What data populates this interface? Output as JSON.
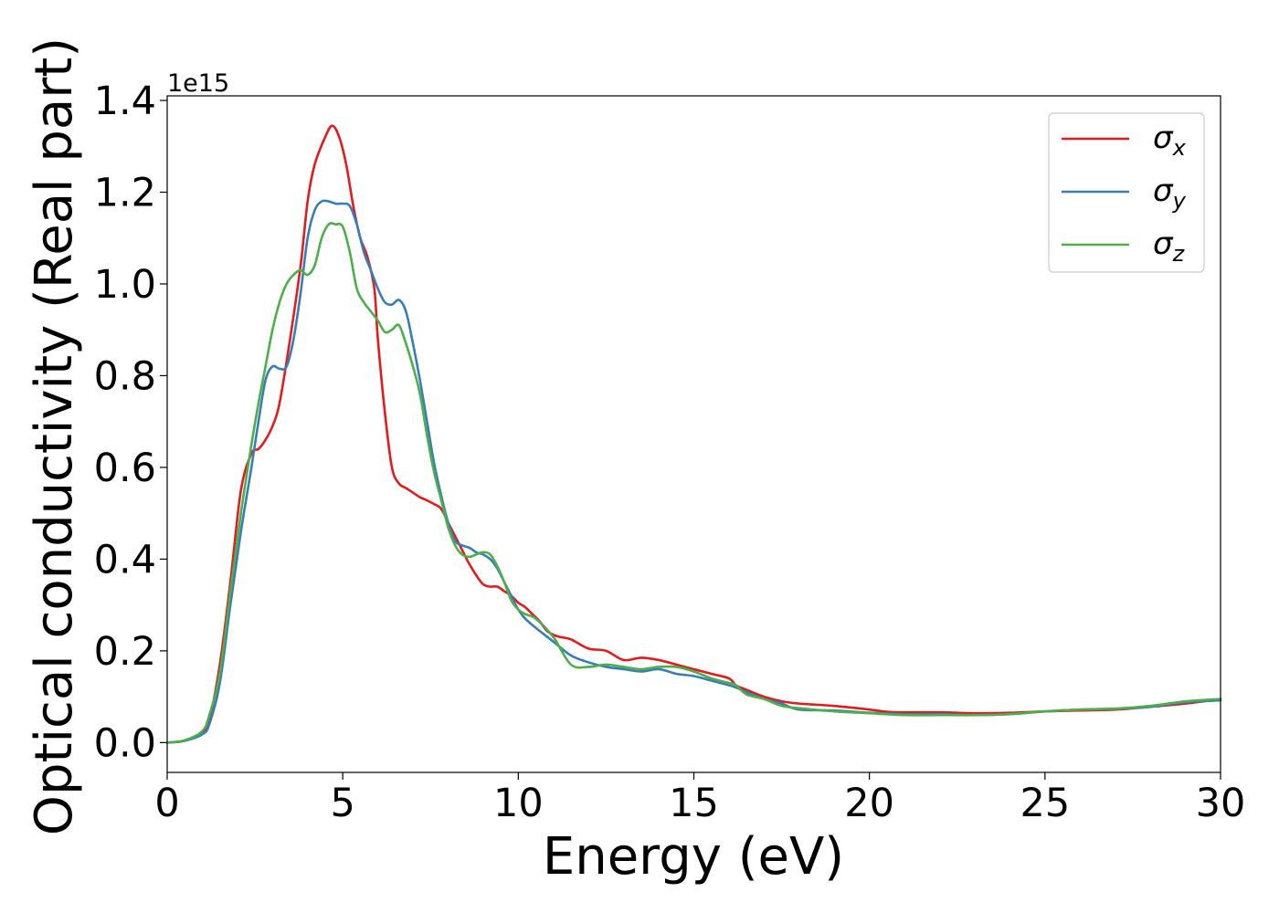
{
  "chart_data": {
    "type": "line",
    "title": "",
    "xlabel": "Energy (eV)",
    "ylabel": "Optical conductivity (Real part)",
    "y_offset_label": "1e15",
    "y_scale": 1000000000000000.0,
    "xlim": [
      0,
      30
    ],
    "ylim": [
      -0.065,
      1.41
    ],
    "x_ticks": [
      0,
      5,
      10,
      15,
      20,
      25,
      30
    ],
    "x_tick_labels": [
      "0",
      "5",
      "10",
      "15",
      "20",
      "25",
      "30"
    ],
    "y_ticks": [
      0.0,
      0.2,
      0.4,
      0.6,
      0.8,
      1.0,
      1.2,
      1.4
    ],
    "y_tick_labels": [
      "0.0",
      "0.2",
      "0.4",
      "0.6",
      "0.8",
      "1.0",
      "1.2",
      "1.4"
    ],
    "grid": false,
    "legend_position": "top-right",
    "series": [
      {
        "name": "σx",
        "legend_base": "σ",
        "legend_sub": "x",
        "color": "#e41a1c",
        "x": [
          0,
          0.5,
          1.0,
          1.2,
          1.5,
          1.8,
          2.1,
          2.4,
          2.6,
          2.8,
          3.0,
          3.2,
          3.5,
          3.8,
          4.0,
          4.2,
          4.5,
          4.7,
          4.9,
          5.1,
          5.3,
          5.5,
          5.7,
          5.9,
          6.0,
          6.2,
          6.4,
          6.6,
          6.8,
          7.0,
          7.2,
          7.4,
          7.6,
          7.8,
          8.0,
          8.2,
          8.4,
          8.6,
          8.8,
          9.0,
          9.2,
          9.4,
          9.6,
          9.8,
          10.0,
          10.2,
          10.4,
          10.6,
          10.8,
          11.0,
          11.2,
          11.5,
          12.0,
          12.5,
          13.0,
          13.5,
          14.0,
          14.5,
          15.0,
          15.5,
          16.0,
          16.2,
          16.5,
          17.0,
          17.5,
          18.0,
          19.0,
          20.0,
          20.5,
          21.0,
          22.0,
          23.0,
          24.0,
          25.0,
          26.0,
          27.0,
          28.0,
          29.0,
          30.0
        ],
        "values": [
          0.0,
          0.004,
          0.02,
          0.05,
          0.17,
          0.35,
          0.55,
          0.63,
          0.64,
          0.66,
          0.69,
          0.74,
          0.88,
          1.04,
          1.18,
          1.26,
          1.32,
          1.345,
          1.32,
          1.26,
          1.17,
          1.1,
          1.06,
          0.99,
          0.88,
          0.72,
          0.6,
          0.565,
          0.555,
          0.545,
          0.535,
          0.528,
          0.52,
          0.51,
          0.48,
          0.45,
          0.42,
          0.39,
          0.365,
          0.345,
          0.34,
          0.34,
          0.33,
          0.32,
          0.305,
          0.295,
          0.28,
          0.265,
          0.245,
          0.235,
          0.23,
          0.225,
          0.205,
          0.2,
          0.18,
          0.185,
          0.18,
          0.17,
          0.16,
          0.15,
          0.14,
          0.125,
          0.115,
          0.1,
          0.09,
          0.085,
          0.08,
          0.072,
          0.067,
          0.066,
          0.066,
          0.064,
          0.065,
          0.068,
          0.07,
          0.072,
          0.078,
          0.085,
          0.095
        ]
      },
      {
        "name": "σy",
        "legend_base": "σ",
        "legend_sub": "y",
        "color": "#377eb8",
        "x": [
          0,
          0.5,
          1.0,
          1.2,
          1.5,
          1.8,
          2.1,
          2.4,
          2.6,
          2.8,
          3.0,
          3.2,
          3.4,
          3.6,
          3.8,
          4.0,
          4.2,
          4.4,
          4.6,
          4.8,
          5.0,
          5.2,
          5.4,
          5.6,
          5.8,
          6.0,
          6.2,
          6.4,
          6.6,
          6.8,
          7.0,
          7.2,
          7.4,
          7.6,
          7.8,
          8.0,
          8.2,
          8.4,
          8.6,
          8.8,
          9.0,
          9.2,
          9.4,
          9.6,
          9.8,
          10.0,
          10.2,
          10.5,
          11.0,
          11.5,
          12.0,
          12.5,
          13.0,
          13.5,
          14.0,
          14.5,
          15.0,
          15.5,
          16.0,
          16.2,
          16.5,
          17.0,
          17.5,
          18.0,
          19.0,
          20.0,
          21.0,
          22.0,
          23.0,
          24.0,
          25.0,
          26.0,
          27.0,
          28.0,
          29.0,
          30.0
        ],
        "values": [
          0.0,
          0.004,
          0.018,
          0.04,
          0.13,
          0.3,
          0.46,
          0.6,
          0.7,
          0.79,
          0.82,
          0.815,
          0.82,
          0.88,
          0.98,
          1.1,
          1.16,
          1.18,
          1.18,
          1.175,
          1.175,
          1.17,
          1.13,
          1.07,
          1.03,
          0.99,
          0.96,
          0.955,
          0.965,
          0.94,
          0.87,
          0.79,
          0.7,
          0.61,
          0.54,
          0.48,
          0.44,
          0.43,
          0.425,
          0.415,
          0.41,
          0.4,
          0.38,
          0.35,
          0.32,
          0.29,
          0.27,
          0.25,
          0.22,
          0.19,
          0.175,
          0.165,
          0.16,
          0.155,
          0.16,
          0.15,
          0.145,
          0.135,
          0.125,
          0.12,
          0.11,
          0.095,
          0.085,
          0.072,
          0.07,
          0.065,
          0.062,
          0.062,
          0.06,
          0.062,
          0.068,
          0.072,
          0.074,
          0.078,
          0.088,
          0.092
        ]
      },
      {
        "name": "σz",
        "legend_base": "σ",
        "legend_sub": "z",
        "color": "#4daf4a",
        "x": [
          0,
          0.5,
          1.0,
          1.2,
          1.5,
          1.8,
          2.1,
          2.4,
          2.6,
          2.8,
          3.0,
          3.2,
          3.4,
          3.6,
          3.8,
          4.0,
          4.2,
          4.4,
          4.6,
          4.8,
          5.0,
          5.2,
          5.4,
          5.6,
          5.8,
          6.0,
          6.2,
          6.4,
          6.6,
          6.8,
          7.0,
          7.2,
          7.4,
          7.6,
          7.8,
          8.0,
          8.2,
          8.4,
          8.6,
          8.8,
          9.0,
          9.2,
          9.4,
          9.6,
          9.8,
          10.0,
          10.2,
          10.5,
          11.0,
          11.5,
          12.0,
          12.5,
          13.0,
          13.5,
          14.0,
          14.5,
          15.0,
          15.5,
          16.0,
          16.2,
          16.5,
          17.0,
          17.5,
          18.0,
          19.0,
          20.0,
          21.0,
          22.0,
          23.0,
          24.0,
          25.0,
          26.0,
          27.0,
          28.0,
          29.0,
          30.0
        ],
        "values": [
          0.0,
          0.005,
          0.025,
          0.06,
          0.15,
          0.33,
          0.5,
          0.65,
          0.74,
          0.82,
          0.9,
          0.96,
          1.0,
          1.02,
          1.03,
          1.02,
          1.04,
          1.1,
          1.13,
          1.13,
          1.125,
          1.07,
          0.99,
          0.96,
          0.94,
          0.92,
          0.895,
          0.9,
          0.91,
          0.87,
          0.82,
          0.76,
          0.67,
          0.59,
          0.53,
          0.47,
          0.43,
          0.41,
          0.405,
          0.41,
          0.415,
          0.41,
          0.385,
          0.35,
          0.31,
          0.29,
          0.28,
          0.27,
          0.23,
          0.17,
          0.165,
          0.17,
          0.165,
          0.16,
          0.165,
          0.165,
          0.155,
          0.14,
          0.13,
          0.125,
          0.105,
          0.095,
          0.08,
          0.075,
          0.068,
          0.064,
          0.06,
          0.06,
          0.06,
          0.062,
          0.068,
          0.072,
          0.074,
          0.08,
          0.09,
          0.095
        ]
      }
    ]
  }
}
